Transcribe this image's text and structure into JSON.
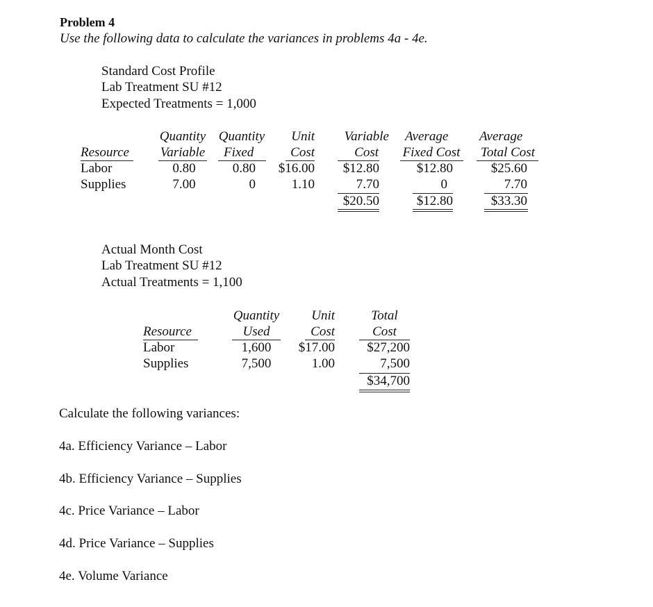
{
  "heading": {
    "title": "Problem 4",
    "instruction": "Use the following data to calculate the variances in problems 4a - 4e."
  },
  "standard": {
    "lines": [
      "Standard Cost Profile",
      "Lab Treatment SU #12",
      "Expected Treatments = 1,000"
    ],
    "headers": [
      [
        "",
        "Resource"
      ],
      [
        "Quantity",
        "Variable"
      ],
      [
        "Quantity",
        "Fixed"
      ],
      [
        "Unit",
        "Cost"
      ],
      [
        "Variable",
        "Cost"
      ],
      [
        "Average",
        "Fixed Cost"
      ],
      [
        "Average",
        "Total Cost"
      ]
    ],
    "rows": [
      [
        "Labor",
        "0.80",
        "0.80",
        "$16.00",
        "$12.80",
        "$12.80",
        "$25.60"
      ],
      [
        "Supplies",
        "7.00",
        "0",
        "1.10",
        "7.70",
        "0",
        "7.70"
      ]
    ],
    "totals": [
      "$20.50",
      "$12.80",
      "$33.30"
    ]
  },
  "actual": {
    "lines": [
      "Actual Month Cost",
      "Lab Treatment SU #12",
      "Actual Treatments = 1,100"
    ],
    "headers": [
      [
        "",
        "Resource"
      ],
      [
        "Quantity",
        "Used"
      ],
      [
        "Unit",
        "Cost"
      ],
      [
        "Total",
        "Cost"
      ]
    ],
    "rows": [
      [
        "Labor",
        "1,600",
        "$17.00",
        "$27,200"
      ],
      [
        "Supplies",
        "7,500",
        "1.00",
        "7,500"
      ]
    ],
    "total": "$34,700"
  },
  "questions": {
    "intro": "Calculate the following variances:",
    "items": [
      "4a. Efficiency Variance – Labor",
      "4b. Efficiency Variance – Supplies",
      "4c. Price Variance – Labor",
      "4d. Price Variance – Supplies",
      "4e. Volume Variance"
    ]
  }
}
